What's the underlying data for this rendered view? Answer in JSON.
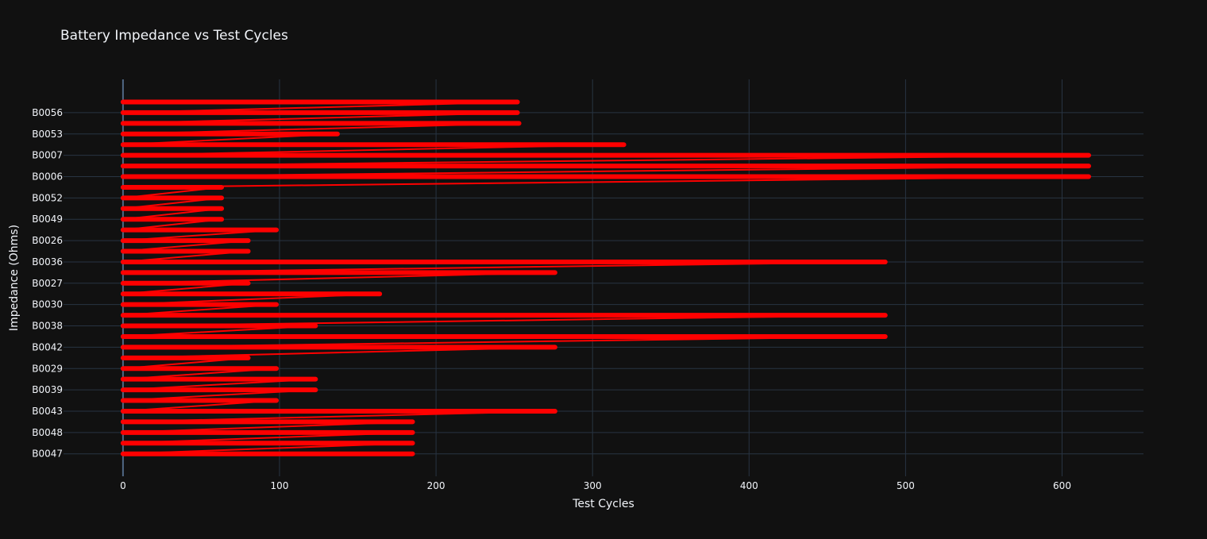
{
  "chart_data": {
    "type": "line",
    "title": "Battery Impedance vs Test Cycles",
    "xlabel": "Test Cycles",
    "ylabel": "Impedance (Ohms)",
    "xlim": [
      -38,
      652
    ],
    "x_ticks": [
      0,
      100,
      200,
      300,
      400,
      500,
      600
    ],
    "y_tick_labels": [
      "B0056",
      "B0053",
      "B0007",
      "B0006",
      "B0052",
      "B0049",
      "B0026",
      "B0036",
      "B0027",
      "B0030",
      "B0038",
      "B0042",
      "B0029",
      "B0039",
      "B0043",
      "B0048",
      "B0047"
    ],
    "grid": true,
    "background": "#111111",
    "grid_color": "#283442",
    "series": [
      {
        "color": "#ff0000",
        "rows_top_to_bottom": [
          {
            "battery": null,
            "max_cycle": 252
          },
          {
            "battery": "B0056",
            "max_cycle": 252
          },
          {
            "battery": null,
            "max_cycle": 253
          },
          {
            "battery": "B0053",
            "max_cycle": 137
          },
          {
            "battery": null,
            "max_cycle": 320
          },
          {
            "battery": "B0007",
            "max_cycle": 617
          },
          {
            "battery": null,
            "max_cycle": 617
          },
          {
            "battery": "B0006",
            "max_cycle": 617
          },
          {
            "battery": null,
            "max_cycle": 63
          },
          {
            "battery": "B0052",
            "max_cycle": 63
          },
          {
            "battery": null,
            "max_cycle": 63
          },
          {
            "battery": "B0049",
            "max_cycle": 63
          },
          {
            "battery": null,
            "max_cycle": 98
          },
          {
            "battery": "B0026",
            "max_cycle": 80
          },
          {
            "battery": null,
            "max_cycle": 80
          },
          {
            "battery": "B0036",
            "max_cycle": 487
          },
          {
            "battery": null,
            "max_cycle": 276
          },
          {
            "battery": "B0027",
            "max_cycle": 80
          },
          {
            "battery": null,
            "max_cycle": 164
          },
          {
            "battery": "B0030",
            "max_cycle": 98
          },
          {
            "battery": null,
            "max_cycle": 487
          },
          {
            "battery": "B0038",
            "max_cycle": 123
          },
          {
            "battery": null,
            "max_cycle": 487
          },
          {
            "battery": "B0042",
            "max_cycle": 276
          },
          {
            "battery": null,
            "max_cycle": 80
          },
          {
            "battery": "B0029",
            "max_cycle": 98
          },
          {
            "battery": null,
            "max_cycle": 123
          },
          {
            "battery": "B0039",
            "max_cycle": 123
          },
          {
            "battery": null,
            "max_cycle": 98
          },
          {
            "battery": "B0043",
            "max_cycle": 276
          },
          {
            "battery": null,
            "max_cycle": 185
          },
          {
            "battery": "B0048",
            "max_cycle": 185
          },
          {
            "battery": null,
            "max_cycle": 185
          },
          {
            "battery": "B0047",
            "max_cycle": 185
          }
        ]
      }
    ]
  }
}
